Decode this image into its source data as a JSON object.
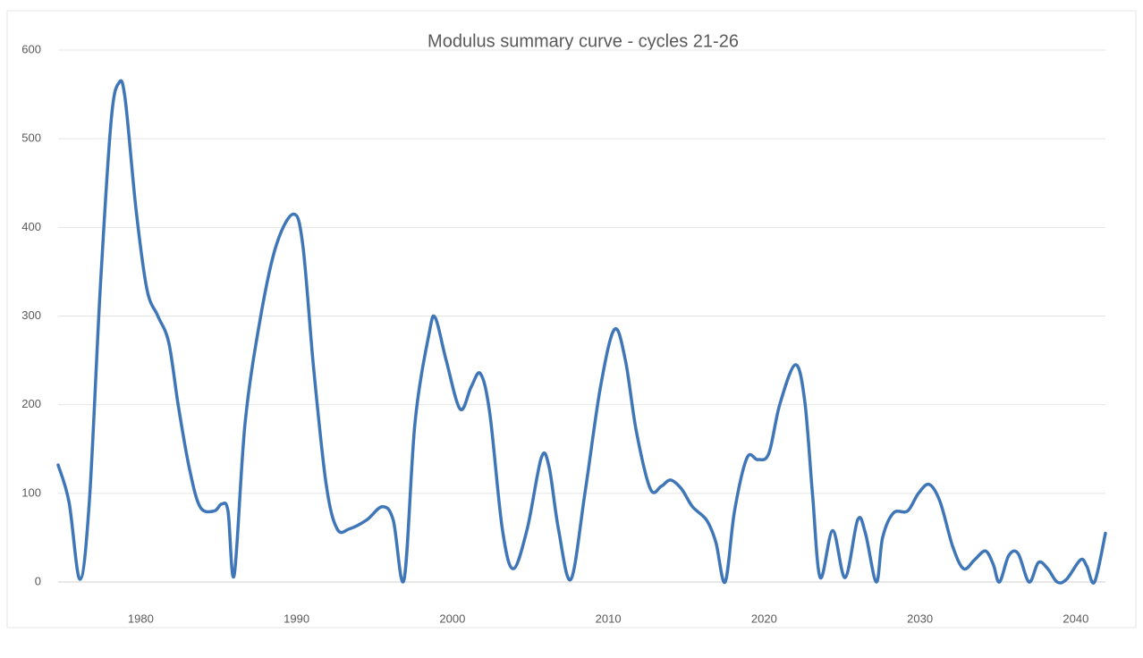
{
  "chart_data": {
    "type": "line",
    "title": "Modulus summary curve - cycles 21-26",
    "x": [
      1974.7,
      1975.4,
      1976.1,
      1976.7,
      1977.4,
      1978.1,
      1978.6,
      1979.0,
      1979.7,
      1980.4,
      1981.1,
      1981.8,
      1982.4,
      1983.1,
      1983.8,
      1984.7,
      1985.2,
      1985.6,
      1986.0,
      1986.7,
      1987.7,
      1988.7,
      1989.8,
      1990.4,
      1991.1,
      1991.9,
      1992.6,
      1993.4,
      1994.5,
      1995.5,
      1996.2,
      1996.9,
      1997.6,
      1998.5,
      1998.9,
      1999.6,
      2000.5,
      2001.2,
      2001.8,
      2002.4,
      2003.2,
      2003.9,
      2004.8,
      2005.7,
      2006.2,
      2006.8,
      2007.6,
      2008.5,
      2009.5,
      2010.4,
      2011.1,
      2011.8,
      2012.7,
      2013.4,
      2014.0,
      2014.7,
      2015.4,
      2016.3,
      2016.9,
      2017.5,
      2018.1,
      2018.9,
      2019.6,
      2020.3,
      2021.0,
      2022.0,
      2022.6,
      2023.1,
      2023.6,
      2024.4,
      2025.2,
      2026.0,
      2026.5,
      2027.2,
      2027.6,
      2028.3,
      2029.2,
      2029.9,
      2030.6,
      2031.3,
      2032.1,
      2032.8,
      2033.5,
      2034.2,
      2034.7,
      2035.1,
      2035.7,
      2036.3,
      2037.0,
      2037.6,
      2038.2,
      2038.8,
      2039.4,
      2040.3,
      2040.7,
      2041.2,
      2041.9
    ],
    "series": [
      {
        "name": "Modulus",
        "color": "#3f76b8",
        "values": [
          132,
          90,
          3,
          90,
          330,
          520,
          563,
          545,
          420,
          330,
          300,
          270,
          200,
          130,
          85,
          80,
          88,
          80,
          8,
          180,
          300,
          380,
          415,
          380,
          240,
          110,
          60,
          60,
          70,
          85,
          70,
          3,
          180,
          280,
          298,
          250,
          195,
          220,
          235,
          190,
          60,
          15,
          60,
          140,
          130,
          60,
          3,
          100,
          220,
          285,
          250,
          170,
          105,
          108,
          115,
          105,
          85,
          70,
          45,
          0,
          80,
          140,
          138,
          145,
          200,
          245,
          205,
          100,
          5,
          58,
          5,
          70,
          55,
          0,
          50,
          78,
          80,
          100,
          110,
          90,
          40,
          15,
          25,
          35,
          20,
          0,
          30,
          32,
          0,
          22,
          15,
          0,
          3,
          25,
          18,
          0,
          55
        ]
      }
    ],
    "xlim": [
      1974.7,
      2041.9
    ],
    "xticks": [
      1980,
      1990,
      2000,
      2010,
      2020,
      2030,
      2040
    ],
    "ylim": [
      0,
      600
    ],
    "yticks": [
      0,
      100,
      200,
      300,
      400,
      500,
      600
    ],
    "grid": true
  }
}
